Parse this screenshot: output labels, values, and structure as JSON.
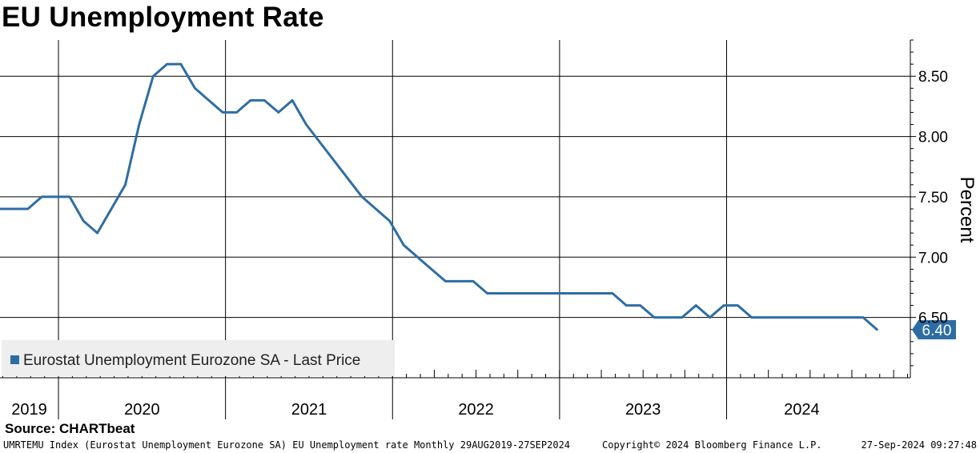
{
  "chart_title": "EU Unemployment Rate",
  "source_text": "Source: CHARTbeat",
  "footer": {
    "description": "UMRTEMU Index (Eurostat Unemployment Eurozone SA) EU Unemployment rate  Monthly 29AUG2019-27SEP2024",
    "copyright": "Copyright© 2024 Bloomberg Finance L.P.",
    "timestamp": "27-Sep-2024 09:27:48"
  },
  "colors": {
    "series": "#2e6da4",
    "last_price_box": "#2e6da4",
    "legend_bg": "#eeeeee"
  },
  "chart_data": {
    "type": "line",
    "title": "EU Unemployment Rate",
    "ylabel": "Percent",
    "xlabel": "",
    "ylim": [
      6.0,
      8.8
    ],
    "yticks": [
      6.5,
      7.0,
      7.5,
      8.0,
      8.5
    ],
    "ytick_labels": [
      "6.50",
      "7.00",
      "7.50",
      "8.00",
      "8.50"
    ],
    "x_range": [
      2019.4,
      2024.85
    ],
    "year_boundaries": [
      2019.75,
      2020.75,
      2021.75,
      2022.75,
      2023.75
    ],
    "year_labels": [
      {
        "year": "2019",
        "at": 2019.575
      },
      {
        "year": "2020",
        "at": 2020.25
      },
      {
        "year": "2021",
        "at": 2021.25
      },
      {
        "year": "2022",
        "at": 2022.25
      },
      {
        "year": "2023",
        "at": 2023.25
      },
      {
        "year": "2024",
        "at": 2024.2
      }
    ],
    "legend": "Eurostat Unemployment Eurozone SA - Last Price",
    "last_value": "6.40",
    "series": [
      {
        "name": "Eurostat Unemployment Eurozone SA - Last Price",
        "x": [
          2019.4,
          2019.567,
          2019.65,
          2019.817,
          2019.9,
          2019.983,
          2020.15,
          2020.233,
          2020.317,
          2020.4,
          2020.483,
          2020.567,
          2020.733,
          2020.817,
          2020.9,
          2020.983,
          2021.067,
          2021.15,
          2021.233,
          2021.4,
          2021.567,
          2021.733,
          2021.817,
          2021.983,
          2022.067,
          2022.15,
          2022.233,
          2022.317,
          2022.4,
          2022.483,
          2022.567,
          2022.65,
          2022.733,
          2022.817,
          2022.9,
          2023.067,
          2023.15,
          2023.233,
          2023.317,
          2023.4,
          2023.483,
          2023.567,
          2023.65,
          2023.733,
          2023.817,
          2023.9,
          2023.983,
          2024.067,
          2024.15,
          2024.233,
          2024.317,
          2024.4,
          2024.483,
          2024.567,
          2024.65
        ],
        "values": [
          7.4,
          7.4,
          7.5,
          7.5,
          7.3,
          7.2,
          7.6,
          8.1,
          8.5,
          8.6,
          8.6,
          8.4,
          8.2,
          8.2,
          8.3,
          8.3,
          8.2,
          8.3,
          8.1,
          7.8,
          7.5,
          7.3,
          7.1,
          6.9,
          6.8,
          6.8,
          6.8,
          6.7,
          6.7,
          6.7,
          6.7,
          6.7,
          6.7,
          6.7,
          6.7,
          6.7,
          6.6,
          6.6,
          6.5,
          6.5,
          6.5,
          6.6,
          6.5,
          6.6,
          6.6,
          6.5,
          6.5,
          6.5,
          6.5,
          6.5,
          6.5,
          6.5,
          6.5,
          6.5,
          6.4
        ]
      }
    ]
  }
}
